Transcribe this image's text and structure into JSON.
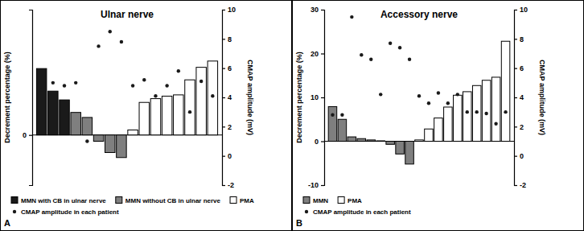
{
  "chart_data": [
    {
      "type": "bar",
      "title": "Ulnar nerve",
      "ylabel": "Decrement percentage (%)",
      "y2label": "CMAP amplitude (mV)",
      "annotations": [
        "A"
      ],
      "categories": [
        null,
        null,
        null,
        null,
        null,
        null,
        null,
        null,
        null,
        null,
        null,
        null,
        null,
        null,
        null,
        null
      ],
      "series": [
        {
          "name": "MMN with CB in ulnar nerve",
          "color": "#1a1a1a",
          "values": [
            5.3,
            3.5,
            2.8,
            null,
            null,
            null,
            null,
            null,
            null,
            null,
            null,
            null,
            null,
            null,
            null,
            null
          ]
        },
        {
          "name": "MMN without CB in ulnar nerve",
          "color": "#7f7f7f",
          "values": [
            null,
            null,
            null,
            1.8,
            1.4,
            -0.5,
            -1.4,
            -1.8,
            null,
            null,
            null,
            null,
            null,
            null,
            null,
            null
          ]
        },
        {
          "name": "PMA",
          "color": "#ffffff",
          "values": [
            null,
            null,
            null,
            null,
            null,
            null,
            null,
            null,
            0.4,
            2.6,
            2.9,
            3.1,
            3.2,
            4.4,
            5.4,
            5.9
          ]
        },
        {
          "name": "CMAP amplitude in each patient",
          "color": "#1a1a1a",
          "type": "scatter",
          "axis": "y2",
          "marker": "circle",
          "values": [
            4.5,
            5.0,
            4.8,
            5.0,
            1.0,
            7.5,
            8.5,
            7.8,
            4.8,
            5.2,
            4.1,
            4.8,
            5.8,
            3.0,
            5.1,
            4.1
          ]
        }
      ],
      "ylim": [
        -4,
        10
      ],
      "yticks": [
        0
      ],
      "y2lim": [
        -2,
        10
      ],
      "y2ticks": [
        -2,
        0,
        2,
        4,
        6,
        8,
        10
      ],
      "legend": "bottom"
    },
    {
      "type": "bar",
      "title": "Accessory nerve",
      "ylabel": "Decrement percentage (%)",
      "y2label": "CMAP amplitude (mV)",
      "annotations": [
        "B"
      ],
      "categories": [
        null,
        null,
        null,
        null,
        null,
        null,
        null,
        null,
        null,
        null,
        null,
        null,
        null,
        null,
        null,
        null,
        null,
        null,
        null
      ],
      "series": [
        {
          "name": "MMN",
          "color": "#7f7f7f",
          "values": [
            7.9,
            5.0,
            1.0,
            0.6,
            0.3,
            0.1,
            -0.7,
            -2.9,
            -5.2,
            null,
            null,
            null,
            null,
            null,
            null,
            null,
            null,
            null,
            null
          ]
        },
        {
          "name": "PMA",
          "color": "#ffffff",
          "values": [
            null,
            null,
            null,
            null,
            null,
            null,
            null,
            null,
            null,
            0.3,
            2.8,
            5.3,
            7.8,
            10.5,
            11.3,
            12.7,
            13.9,
            14.6,
            22.8
          ]
        },
        {
          "name": "CMAP amplitude in each patient",
          "color": "#1a1a1a",
          "type": "scatter",
          "axis": "y2",
          "marker": "circle",
          "values": [
            2.8,
            2.8,
            9.5,
            6.9,
            6.6,
            4.2,
            7.7,
            7.4,
            6.6,
            4.1,
            3.6,
            4.3,
            3.6,
            4.2,
            3.0,
            3.0,
            2.9,
            2.2,
            3.0
          ]
        }
      ],
      "ylim": [
        -10,
        30
      ],
      "yticks": [
        -10,
        0,
        10,
        20,
        30
      ],
      "y2lim": [
        -2,
        10
      ],
      "y2ticks": [
        -2,
        0,
        2,
        4,
        6,
        8,
        10
      ],
      "legend": "bottom"
    }
  ]
}
